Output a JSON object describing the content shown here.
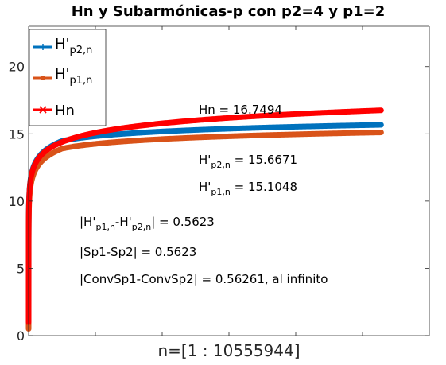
{
  "chart_data": {
    "type": "line",
    "title": "Hn y Subarmónicas-p con p2=4 y p1=2",
    "xlabel": "n=[1 : 10555944]",
    "ylabel": "",
    "n_max": 10555944,
    "ylim": [
      0,
      23
    ],
    "xlim": [
      1,
      12000000
    ],
    "yticks": [
      0,
      5,
      10,
      15,
      20
    ],
    "ytick_labels": [
      "0",
      "5",
      "10",
      "15",
      "20"
    ],
    "grid": false,
    "legend_position": "top-left",
    "series": [
      {
        "name": "H'p2,n",
        "name_main": "H'",
        "name_sub": "p2,n",
        "color": "#0072BD",
        "marker": "+",
        "x": [
          1,
          1000,
          10000,
          100000,
          1000000,
          10555944
        ],
        "y": [
          1.0,
          7.57,
          9.87,
          12.17,
          14.47,
          15.6671
        ]
      },
      {
        "name": "H'p1,n",
        "name_main": "H'",
        "name_sub": "p1,n",
        "color": "#D95319",
        "marker": "o",
        "x": [
          1,
          1000,
          10000,
          100000,
          1000000,
          10555944
        ],
        "y": [
          0.5,
          7.0,
          9.3,
          11.6,
          13.9,
          15.1048
        ]
      },
      {
        "name": "Hn",
        "name_main": "Hn",
        "name_sub": "",
        "color": "#FF0000",
        "marker": "x",
        "x": [
          1,
          1000,
          10000,
          100000,
          1000000,
          10555944
        ],
        "y": [
          1.0,
          7.485,
          9.788,
          12.09,
          14.39,
          16.7494
        ]
      }
    ],
    "annotations": {
      "hn": "Hn = 16.7494",
      "hp2_main": "H'",
      "hp2_sub": "p2,n",
      "hp2_value": " = 15.6671",
      "hp1_main": "H'",
      "hp1_sub": "p1,n",
      "hp1_value": " = 15.1048",
      "diff_open": "|H'",
      "diff_sub1": "p1,n",
      "diff_mid": "-H'",
      "diff_sub2": "p2,n",
      "diff_close": "| = 0.5623",
      "sp": "|Sp1-Sp2| = 0.5623",
      "conv": "|ConvSp1-ConvSp2| = 0.56261, al infinito"
    }
  }
}
